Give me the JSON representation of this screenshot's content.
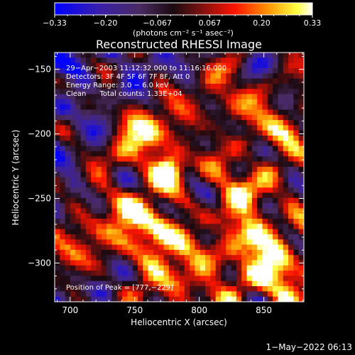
{
  "chart_data": {
    "type": "heatmap",
    "title": "Reconstructed RHESSI Image",
    "xlabel": "Heliocentric X (arcsec)",
    "ylabel": "Heliocentric Y (arcsec)",
    "xlim": [
      688,
      881
    ],
    "ylim": [
      -330,
      -137
    ],
    "x_ticks": [
      700,
      750,
      800,
      850
    ],
    "y_ticks": [
      -150,
      -200,
      -250,
      -300
    ],
    "x_tick_labels": [
      "700",
      "750",
      "800",
      "850"
    ],
    "y_tick_labels": [
      "−150",
      "−200",
      "−250",
      "−300"
    ],
    "colorbar": {
      "min": -0.33,
      "max": 0.33,
      "tick_values": [
        -0.33,
        -0.2,
        -0.067,
        0.067,
        0.2,
        0.33
      ],
      "tick_labels": [
        "−0.33",
        "−0.20",
        "−0.067",
        "0.067",
        "0.20",
        "0.33"
      ],
      "unit_label": "(photons cm⁻² s⁻¹ asec⁻²)"
    },
    "annotations": [
      "29−Apr−2003 11:12:32.000 to 11:16:16.000",
      "Detectors: 3F 4F 5F 6F 7F 8F, Att 0",
      "Energy Range: 3.0 − 6.0 keV",
      "Clean      Total counts: 1.33E+04"
    ],
    "peak_label": "Position of Peak = [777,−229]",
    "peak": {
      "x": 777,
      "y": -229
    },
    "sources": [
      {
        "x": 777,
        "y": -229,
        "level": 0.33
      },
      {
        "x": 768,
        "y": -281,
        "level": 0.21
      },
      {
        "x": 840,
        "y": -285,
        "level": 0.19
      },
      {
        "x": 768,
        "y": -195,
        "level": 0.14
      },
      {
        "x": 745,
        "y": -260,
        "level": 0.12
      },
      {
        "x": 705,
        "y": -280,
        "level": 0.1
      },
      {
        "x": 830,
        "y": -240,
        "level": 0.13
      },
      {
        "x": 860,
        "y": -310,
        "level": 0.11
      },
      {
        "x": 820,
        "y": -170,
        "level": 0.09
      },
      {
        "x": 865,
        "y": -195,
        "level": 0.08
      },
      {
        "x": 790,
        "y": -315,
        "level": 0.1
      },
      {
        "x": 745,
        "y": -210,
        "level": 0.09
      }
    ],
    "colors": {
      "background": "#000000",
      "foreground": "#ffffff",
      "colormap_stops": [
        "#0000ff",
        "#3a20a8",
        "#4a2a60",
        "#1a0a10",
        "#6a1010",
        "#ff1400",
        "#ff8c00",
        "#ffff40",
        "#ffffff"
      ]
    }
  },
  "timestamp": "1−May−2022 06:13"
}
